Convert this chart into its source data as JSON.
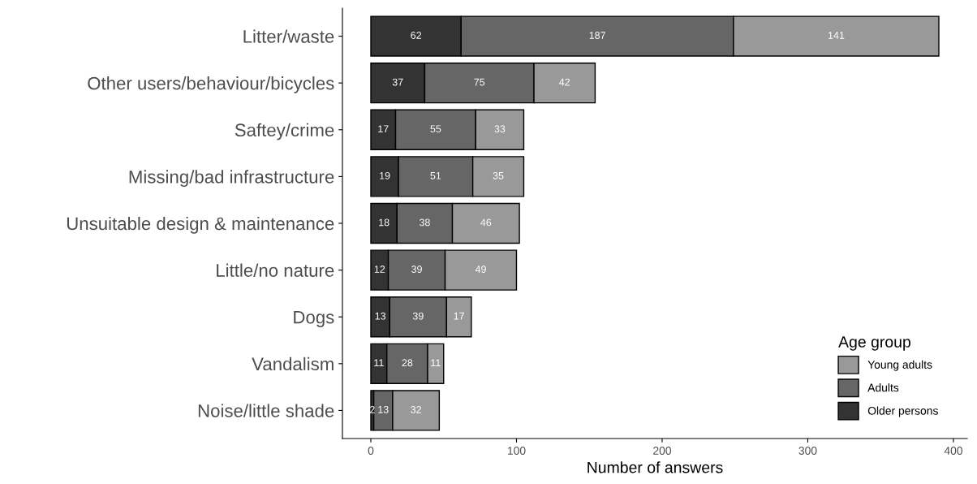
{
  "chart_data": {
    "type": "bar",
    "orientation": "horizontal",
    "stacked": true,
    "xlabel": "Number of answers",
    "legend_title": "Age group",
    "legend": "bottom right",
    "data_labels": true,
    "grid": false,
    "categories": [
      "Litter/waste",
      "Other users/behaviour/bicycles",
      "Saftey/crime",
      "Missing/bad infrastructure",
      "Unsuitable design & maintenance",
      "Little/no nature",
      "Dogs",
      "Vandalism",
      "Noise/little shade"
    ],
    "series": [
      {
        "name": "Older persons",
        "color": "#333333",
        "values": [
          62,
          37,
          17,
          19,
          18,
          12,
          13,
          11,
          2
        ]
      },
      {
        "name": "Adults",
        "color": "#666666",
        "values": [
          187,
          75,
          55,
          51,
          38,
          39,
          39,
          28,
          13
        ]
      },
      {
        "name": "Young adults",
        "color": "#999999",
        "values": [
          141,
          42,
          33,
          35,
          46,
          49,
          17,
          11,
          32
        ]
      }
    ],
    "xlim": [
      -19.5,
      409.5
    ],
    "xticks": [
      0,
      100,
      200,
      300,
      400
    ]
  }
}
